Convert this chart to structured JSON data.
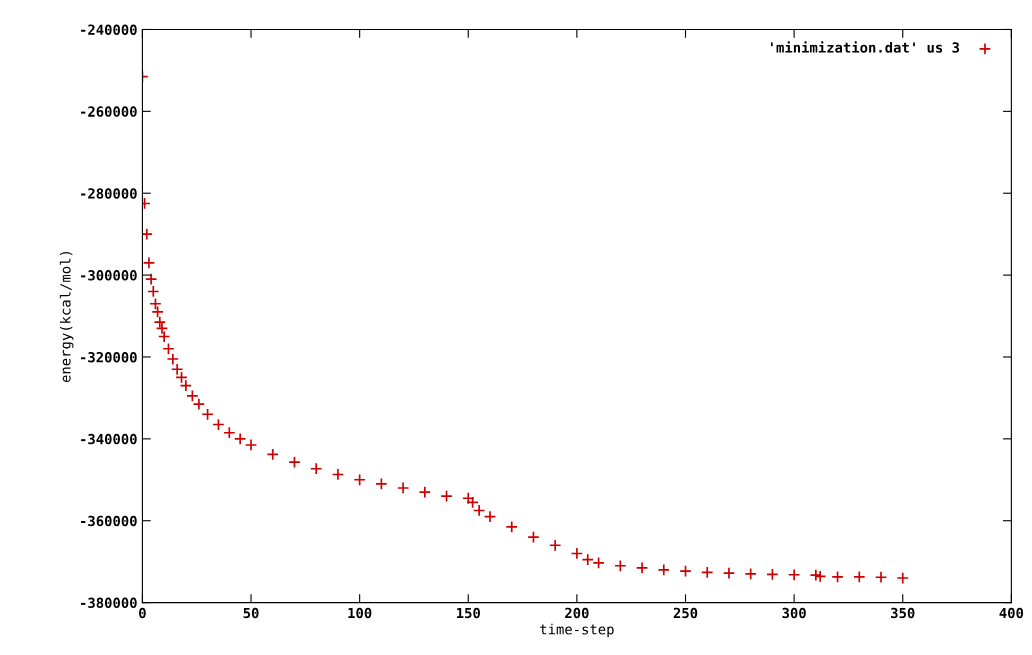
{
  "chart_data": {
    "type": "scatter",
    "xlabel": "time-step",
    "ylabel": "energy(kcal/mol)",
    "xlim": [
      0,
      400
    ],
    "ylim": [
      -380000,
      -240000
    ],
    "xticks": [
      0,
      50,
      100,
      150,
      200,
      250,
      300,
      350,
      400
    ],
    "yticks": [
      -380000,
      -360000,
      -340000,
      -320000,
      -300000,
      -280000,
      -260000,
      -240000
    ],
    "marker": "cross",
    "legend": "top right",
    "grid": false,
    "series": [
      {
        "name": "'minimization.dat' us 3",
        "color": "#cc0000",
        "x": [
          0,
          1,
          2,
          3,
          4,
          5,
          6,
          7,
          8,
          9,
          10,
          12,
          14,
          16,
          18,
          20,
          23,
          26,
          30,
          35,
          40,
          45,
          50,
          60,
          70,
          80,
          90,
          100,
          110,
          120,
          130,
          140,
          150,
          152,
          155,
          160,
          170,
          180,
          190,
          200,
          205,
          210,
          220,
          230,
          240,
          250,
          260,
          270,
          280,
          290,
          300,
          310,
          312,
          320,
          330,
          340,
          350
        ],
        "values": [
          -251500,
          -282500,
          -290000,
          -297000,
          -301000,
          -304000,
          -307000,
          -309000,
          -311500,
          -313000,
          -315000,
          -318000,
          -320500,
          -323000,
          -325000,
          -327000,
          -329500,
          -331500,
          -334000,
          -336500,
          -338500,
          -340000,
          -341500,
          -343800,
          -345700,
          -347300,
          -348700,
          -350000,
          -351000,
          -352000,
          -353000,
          -354000,
          -354500,
          -355500,
          -357500,
          -359000,
          -361500,
          -364000,
          -366000,
          -368000,
          -369500,
          -370300,
          -371000,
          -371500,
          -372000,
          -372300,
          -372600,
          -372800,
          -373000,
          -373100,
          -373200,
          -373300,
          -373600,
          -373700,
          -373700,
          -373800,
          -374000
        ]
      }
    ]
  }
}
